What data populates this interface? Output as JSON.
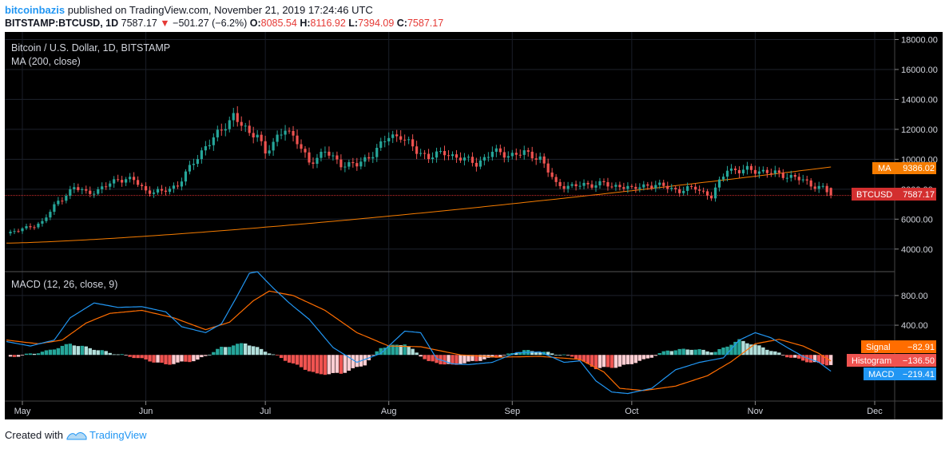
{
  "header": {
    "author": "bitcoinbazis",
    "published_text": "published on TradingView.com, November 21, 2019 17:24:46 UTC",
    "symbol": "BITSTAMP:BTCUSD, 1D",
    "last_price": "7587.17",
    "change": "−501.27 (−6.2%)",
    "open_label": "O:",
    "open": "8085.54",
    "high_label": "H:",
    "high": "8116.92",
    "low_label": "L:",
    "low": "7394.09",
    "close_label": "C:",
    "close": "7587.17"
  },
  "legend": {
    "main_title": "Bitcoin / U.S. Dollar, 1D, BITSTAMP",
    "ma_title": "MA (200, close)",
    "macd_title": "MACD (12, 26, close, 9)"
  },
  "badges": {
    "ma_label": "MA",
    "ma_value": "9386.02",
    "price_label": "BTCUSD",
    "price_value": "7587.17",
    "signal_label": "Signal",
    "signal_value": "−82.91",
    "hist_label": "Histogram",
    "hist_value": "−136.50",
    "macd_label": "MACD",
    "macd_value": "−219.41"
  },
  "footer": {
    "created_with": "Created with",
    "brand": "TradingView"
  },
  "colors": {
    "background": "#000000",
    "up": "#26a69a",
    "down": "#ef5350",
    "ma": "#f57c00",
    "macd": "#2196f3",
    "signal": "#ff6d00",
    "hist_pos_strong": "#26a69a",
    "hist_pos_weak": "#b2dfdb",
    "hist_neg_strong": "#ef5350",
    "hist_neg_weak": "#ffcdd2"
  },
  "chart_data": [
    {
      "type": "candlestick",
      "title": "Bitcoin / U.S. Dollar, 1D, BITSTAMP",
      "x_labels": [
        "May",
        "Jun",
        "Jul",
        "Aug",
        "Sep",
        "Oct",
        "Nov",
        "Dec"
      ],
      "x_label_days": [
        0,
        31,
        61,
        92,
        123,
        153,
        184,
        214
      ],
      "y_ticks": [
        4000,
        6000,
        8000,
        10000,
        12000,
        14000,
        16000,
        18000
      ],
      "ylim": [
        2600,
        18400
      ],
      "days": [
        -4,
        1,
        5,
        9,
        13,
        16,
        19,
        24,
        28,
        31,
        35,
        39,
        42,
        46,
        50,
        53,
        57,
        59,
        61,
        63,
        66,
        69,
        72,
        76,
        80,
        84,
        88,
        92,
        95,
        99,
        102,
        106,
        110,
        114,
        118,
        122,
        126,
        130,
        134,
        138,
        142,
        146,
        148,
        150,
        153,
        157,
        161,
        165,
        169,
        173,
        177,
        180,
        182,
        186,
        190,
        194,
        198,
        201,
        203
      ],
      "close": [
        5050,
        5400,
        5800,
        7200,
        8100,
        7800,
        7900,
        8700,
        8600,
        7900,
        7800,
        8300,
        9400,
        10900,
        11900,
        13000,
        11600,
        11800,
        10400,
        11000,
        12200,
        11100,
        9800,
        10500,
        9700,
        9600,
        10400,
        11500,
        11600,
        10500,
        10200,
        10400,
        10100,
        9700,
        10500,
        10300,
        10400,
        10100,
        8300,
        8200,
        8300,
        8400,
        8100,
        8300,
        8000,
        8300,
        8200,
        7900,
        8100,
        7500,
        9400,
        9200,
        9300,
        9200,
        9000,
        8800,
        8300,
        8100,
        7587.17
      ],
      "MA_200": {
        "start_day": -4,
        "start_value": 4400,
        "day_200": 200,
        "value_200": 9386.02
      },
      "last_price": 7587.17
    },
    {
      "type": "line",
      "title": "MACD (12, 26, close, 9)",
      "y_ticks": [
        400,
        800
      ],
      "ylim": [
        -600,
        1100
      ],
      "series": [
        {
          "name": "MACD",
          "days": [
            -4,
            2,
            8,
            12,
            18,
            24,
            30,
            36,
            40,
            46,
            50,
            54,
            57,
            59,
            63,
            67,
            72,
            78,
            84,
            90,
            96,
            100,
            104,
            108,
            112,
            118,
            124,
            130,
            136,
            140,
            144,
            148,
            152,
            158,
            164,
            170,
            176,
            180,
            184,
            188,
            192,
            196,
            200,
            203
          ],
          "values": [
            180,
            120,
            200,
            500,
            700,
            640,
            650,
            580,
            380,
            300,
            420,
            800,
            1100,
            1120,
            900,
            700,
            480,
            100,
            -100,
            20,
            320,
            300,
            -50,
            -120,
            -130,
            -100,
            30,
            40,
            -100,
            -80,
            -350,
            -500,
            -520,
            -450,
            -200,
            -100,
            -40,
            200,
            300,
            230,
            100,
            -20,
            -100,
            -219.41
          ]
        },
        {
          "name": "Signal",
          "days": [
            -4,
            4,
            10,
            16,
            22,
            30,
            38,
            46,
            52,
            58,
            62,
            68,
            76,
            84,
            92,
            100,
            110,
            120,
            130,
            140,
            146,
            150,
            156,
            164,
            172,
            178,
            184,
            190,
            196,
            200,
            203
          ],
          "values": [
            200,
            150,
            200,
            430,
            560,
            600,
            500,
            340,
            440,
            730,
            860,
            800,
            600,
            300,
            120,
            110,
            0,
            -30,
            -20,
            -60,
            -230,
            -450,
            -480,
            -420,
            -280,
            -90,
            150,
            210,
            120,
            20,
            -82.91
          ]
        },
        {
          "name": "Histogram",
          "days": [
            -4,
            6,
            12,
            18,
            22,
            28,
            36,
            44,
            50,
            56,
            62,
            68,
            74,
            80,
            86,
            90,
            96,
            102,
            108,
            114,
            120,
            126,
            132,
            138,
            144,
            150,
            156,
            162,
            168,
            174,
            180,
            186,
            192,
            198,
            203
          ],
          "values": [
            -40,
            50,
            150,
            80,
            30,
            -30,
            -130,
            -70,
            100,
            160,
            30,
            -120,
            -260,
            -250,
            -130,
            100,
            150,
            -90,
            -140,
            -80,
            -20,
            60,
            30,
            -20,
            -180,
            -160,
            -70,
            60,
            80,
            40,
            200,
            100,
            -20,
            -100,
            -136.5
          ]
        }
      ],
      "Signal_last": -82.91,
      "Histogram_last": -136.5,
      "MACD_last": -219.41
    }
  ]
}
